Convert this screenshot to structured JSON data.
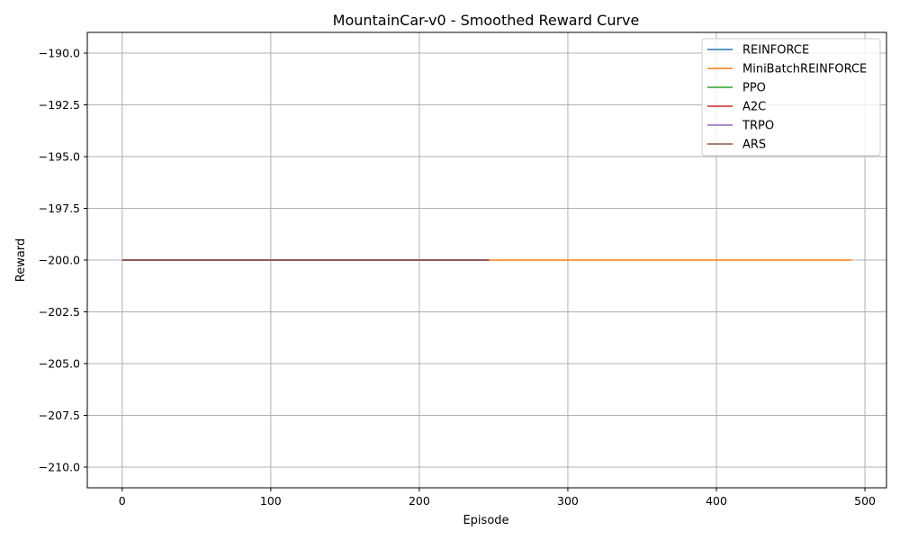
{
  "chart_data": {
    "type": "line",
    "title": "MountainCar-v0 - Smoothed Reward Curve",
    "xlabel": "Episode",
    "ylabel": "Reward",
    "xlim": [
      -23.5,
      514.5
    ],
    "ylim": [
      -211.0,
      -189.0
    ],
    "xticks": [
      0,
      100,
      200,
      300,
      400,
      500
    ],
    "xtick_labels": [
      "0",
      "100",
      "200",
      "300",
      "400",
      "500"
    ],
    "yticks": [
      -190.0,
      -192.5,
      -195.0,
      -197.5,
      -200.0,
      -202.5,
      -205.0,
      -207.5,
      -210.0
    ],
    "ytick_labels": [
      "−190.0",
      "−192.5",
      "−195.0",
      "−197.5",
      "−200.0",
      "−202.5",
      "−205.0",
      "−207.5",
      "−210.0"
    ],
    "grid": true,
    "legend_position": "upper right",
    "series": [
      {
        "name": "REINFORCE",
        "color": "#1f77b4",
        "x": [
          0,
          247
        ],
        "y": [
          -200,
          -200
        ]
      },
      {
        "name": "MiniBatchREINFORCE",
        "color": "#ff7f0e",
        "x": [
          0,
          491
        ],
        "y": [
          -200,
          -200
        ]
      },
      {
        "name": "PPO",
        "color": "#2ca02c",
        "x": [
          0,
          247
        ],
        "y": [
          -200,
          -200
        ]
      },
      {
        "name": "A2C",
        "color": "#d62728",
        "x": [
          0,
          247
        ],
        "y": [
          -200,
          -200
        ]
      },
      {
        "name": "TRPO",
        "color": "#9467bd",
        "x": [
          0,
          247
        ],
        "y": [
          -200,
          -200
        ]
      },
      {
        "name": "ARS",
        "color": "#8c564b",
        "x": [
          0,
          247
        ],
        "y": [
          -200,
          -200
        ]
      }
    ]
  }
}
